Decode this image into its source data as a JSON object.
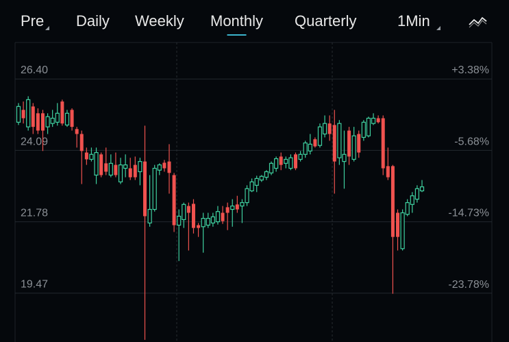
{
  "tabs": [
    {
      "label": "Pre"
    },
    {
      "label": "Daily"
    },
    {
      "label": "Weekly"
    },
    {
      "label": "Monthly",
      "active": true
    },
    {
      "label": "Quarterly"
    },
    {
      "label": "1Min"
    }
  ],
  "chart_data": {
    "type": "candlestick",
    "up_color": "#3fd1a0",
    "down_color": "#f0524f",
    "grid": true,
    "ylim": [
      17.89,
      27.58
    ],
    "yticks": [
      {
        "value": 26.4,
        "label": "26.40"
      },
      24.09,
      21.78,
      19.47
    ],
    "y2lim": [
      -29.97,
      8.0
    ],
    "y2ticks": [
      {
        "value": 3.38,
        "label": "+3.38%"
      },
      {
        "value": -5.68,
        "label": "-5.68%"
      },
      {
        "value": -14.73,
        "label": "-14.73%"
      },
      {
        "value": -23.78,
        "label": "-23.78%"
      }
    ],
    "open": [
      25.0,
      25.4,
      24.85,
      25.51,
      25.29,
      25.29,
      24.85,
      24.96,
      25.0,
      25.67,
      24.91,
      25.4,
      24.78,
      24.62,
      24.02,
      23.8,
      23.29,
      23.96,
      23.67,
      23.29,
      23.62,
      23.07,
      23.51,
      23.51,
      23.62,
      23.4,
      23.73,
      21.74,
      22.18,
      23.45,
      23.69,
      23.73,
      23.29,
      21.67,
      21.85,
      22.29,
      22.36,
      21.67,
      21.62,
      21.67,
      21.74,
      21.78,
      22.07,
      22.25,
      22.18,
      22.34,
      22.29,
      22.4,
      22.78,
      22.96,
      23.13,
      23.22,
      23.36,
      23.51,
      23.89,
      23.67,
      23.51,
      23.96,
      23.8,
      23.96,
      24.07,
      24.45,
      24.25,
      24.62,
      24.96,
      24.91,
      23.85,
      23.73,
      24.73,
      23.8,
      24.62,
      24.51,
      24.56,
      24.96,
      25.13,
      25.13,
      23.58,
      23.58,
      22.07,
      20.91,
      22.02,
      22.34,
      22.51,
      22.78
    ],
    "high": [
      25.62,
      25.67,
      25.84,
      25.62,
      25.45,
      25.4,
      25.29,
      25.4,
      25.62,
      25.73,
      25.4,
      25.45,
      24.85,
      24.73,
      24.18,
      24.18,
      24.18,
      24.02,
      24.18,
      23.96,
      24.02,
      23.85,
      23.96,
      23.85,
      23.89,
      23.85,
      24.89,
      23.29,
      23.62,
      23.67,
      23.78,
      24.29,
      23.36,
      22.18,
      22.4,
      22.4,
      22.51,
      21.74,
      22.07,
      22.07,
      22.07,
      22.29,
      22.29,
      22.4,
      22.51,
      22.62,
      22.51,
      22.96,
      23.18,
      23.27,
      23.29,
      23.45,
      23.73,
      23.89,
      24.02,
      23.89,
      23.96,
      24.02,
      24.07,
      24.4,
      24.62,
      24.51,
      24.96,
      25.22,
      25.22,
      25.4,
      25.07,
      24.73,
      24.85,
      24.85,
      24.73,
      25.07,
      25.18,
      25.29,
      25.22,
      25.22,
      24.18,
      23.62,
      22.18,
      22.18,
      22.51,
      22.74,
      22.96,
      23.13
    ],
    "low": [
      24.91,
      24.96,
      24.73,
      24.62,
      24.62,
      24.07,
      24.62,
      24.85,
      24.89,
      24.89,
      24.85,
      24.73,
      24.18,
      23.0,
      23.62,
      23.73,
      23.0,
      23.22,
      23.29,
      23.22,
      23.22,
      23.0,
      23.22,
      23.13,
      23.13,
      22.96,
      17.96,
      21.62,
      22.11,
      23.29,
      23.4,
      22.69,
      21.45,
      20.51,
      21.58,
      20.85,
      21.4,
      21.29,
      20.78,
      21.58,
      21.62,
      21.69,
      21.71,
      21.51,
      21.62,
      22.07,
      21.74,
      22.29,
      22.74,
      22.74,
      23.07,
      23.13,
      23.29,
      23.4,
      23.45,
      23.51,
      23.45,
      23.45,
      23.73,
      23.85,
      23.96,
      24.18,
      24.18,
      24.51,
      24.4,
      22.69,
      23.62,
      22.85,
      23.62,
      23.73,
      23.85,
      24.4,
      24.51,
      24.91,
      24.96,
      23.29,
      23.13,
      19.45,
      20.85,
      20.85,
      21.96,
      22.07,
      22.4,
      22.74
    ],
    "close": [
      25.51,
      25.13,
      25.73,
      24.85,
      24.73,
      24.73,
      25.18,
      25.13,
      25.29,
      24.96,
      25.29,
      24.85,
      24.62,
      24.07,
      23.8,
      23.96,
      24.02,
      23.29,
      23.4,
      23.67,
      23.29,
      23.62,
      23.62,
      23.22,
      23.22,
      23.73,
      21.96,
      22.18,
      23.51,
      23.62,
      23.51,
      23.36,
      21.67,
      21.96,
      22.34,
      22.07,
      21.58,
      21.58,
      21.89,
      21.89,
      21.94,
      22.11,
      21.8,
      22.07,
      22.29,
      22.18,
      22.4,
      22.85,
      23.07,
      23.18,
      23.25,
      23.4,
      23.67,
      23.82,
      23.62,
      23.8,
      23.85,
      23.51,
      23.96,
      24.33,
      24.29,
      24.22,
      24.85,
      24.96,
      24.62,
      23.73,
      24.96,
      23.96,
      23.89,
      24.56,
      24.02,
      25.0,
      25.13,
      25.13,
      25.0,
      23.51,
      23.22,
      21.29,
      21.29,
      22.07,
      22.4,
      22.62,
      22.85,
      22.91
    ]
  }
}
